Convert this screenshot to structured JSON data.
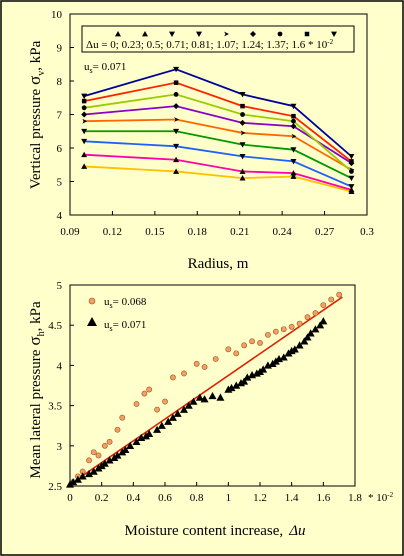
{
  "figure": {
    "background": "#ffffcc",
    "border": "#000000"
  },
  "chart_data": [
    {
      "type": "line",
      "title": "",
      "xlabel": "Radius, m",
      "ylabel_main": "Vertical pressure",
      "ylabel_symbol": "σ",
      "ylabel_sub": "v",
      "ylabel_unit": ", kPa",
      "xlim": [
        0.09,
        0.3
      ],
      "ylim": [
        4,
        10
      ],
      "xticks": [
        "0.09",
        "0.12",
        "0.15",
        "0.18",
        "0.21",
        "0.24",
        "0.27",
        "0.3"
      ],
      "yticks": [
        "4",
        "5",
        "6",
        "7",
        "8",
        "9",
        "10"
      ],
      "grid": false,
      "legend": {
        "placement": "top",
        "text": "Δu =  0;  0.23;  0.5;  0.71;  0.81;  1.07;  1.24;  1.37;  1.6 * 10",
        "superscript": "-2"
      },
      "annotation": {
        "main": "u",
        "sub": "s",
        "value": "= 0.071"
      },
      "x": [
        0.1,
        0.165,
        0.212,
        0.248,
        0.289
      ],
      "series": [
        {
          "delta_u": 0,
          "color": "#ffc000",
          "marker": "triangle-up",
          "values": [
            5.45,
            5.3,
            5.1,
            5.15,
            4.7
          ]
        },
        {
          "delta_u": 0.23,
          "color": "#ff00aa",
          "marker": "triangle-up",
          "values": [
            5.8,
            5.65,
            5.3,
            5.25,
            4.75
          ]
        },
        {
          "delta_u": 0.5,
          "color": "#2060ff",
          "marker": "triangle-down",
          "values": [
            6.2,
            6.05,
            5.75,
            5.6,
            4.85
          ]
        },
        {
          "delta_u": 0.71,
          "color": "#009900",
          "marker": "triangle-down",
          "values": [
            6.5,
            6.5,
            6.1,
            5.95,
            5.1
          ]
        },
        {
          "delta_u": 0.81,
          "color": "#ff6600",
          "marker": "arrow",
          "values": [
            6.8,
            6.85,
            6.45,
            6.35,
            5.35
          ]
        },
        {
          "delta_u": 1.07,
          "color": "#8800cc",
          "marker": "diamond",
          "values": [
            7.0,
            7.25,
            6.75,
            6.65,
            5.55
          ]
        },
        {
          "delta_u": 1.24,
          "color": "#99cc00",
          "marker": "circle",
          "values": [
            7.2,
            7.6,
            7.0,
            6.8,
            5.3
          ]
        },
        {
          "delta_u": 1.37,
          "color": "#ff2200",
          "marker": "square",
          "values": [
            7.4,
            7.95,
            7.25,
            6.95,
            5.6
          ]
        },
        {
          "delta_u": 1.6,
          "color": "#000099",
          "marker": "triangle-down",
          "values": [
            7.55,
            8.35,
            7.6,
            7.25,
            5.75
          ]
        }
      ]
    },
    {
      "type": "scatter",
      "title": "",
      "xlabel": "Moisture content increase,",
      "xlabel_symbol": "Δu",
      "ylabel_main": "Mean lateral pressure",
      "ylabel_symbol": "σ",
      "ylabel_sub": "h",
      "ylabel_unit": ", kPa",
      "xlim": [
        0,
        1.8
      ],
      "ylim": [
        2.5,
        5
      ],
      "xticks": [
        "0",
        "0.2",
        "0.4",
        "0.6",
        "0.8",
        "1",
        "1.2",
        "1.4",
        "1.6",
        "1.8"
      ],
      "x_multiplier_label": "* 10",
      "x_multiplier_sup": "-2",
      "yticks": [
        "2.5",
        "3",
        "3.5",
        "4",
        "4.5",
        "5"
      ],
      "grid": false,
      "legend": {
        "placement": "top-left"
      },
      "trendline": {
        "color": "#dd2200",
        "x": [
          0,
          1.72
        ],
        "y": [
          2.52,
          4.85
        ]
      },
      "series": [
        {
          "name_main": "u",
          "name_sub": "s",
          "name_value": "= 0.068",
          "marker": "circle",
          "color": "#f0a060",
          "x": [
            0.02,
            0.05,
            0.08,
            0.12,
            0.15,
            0.18,
            0.22,
            0.25,
            0.3,
            0.33,
            0.42,
            0.47,
            0.5,
            0.55,
            0.6,
            0.65,
            0.72,
            0.8,
            0.85,
            0.92,
            1.0,
            1.05,
            1.1,
            1.15,
            1.2,
            1.25,
            1.3,
            1.35,
            1.4,
            1.45,
            1.5,
            1.55,
            1.6,
            1.65,
            1.7
          ],
          "y": [
            2.55,
            2.62,
            2.68,
            2.82,
            2.92,
            2.88,
            3.0,
            3.05,
            3.2,
            3.35,
            3.52,
            3.65,
            3.7,
            3.45,
            3.55,
            3.85,
            3.9,
            4.02,
            3.98,
            4.08,
            4.2,
            4.15,
            4.25,
            4.3,
            4.28,
            4.38,
            4.42,
            4.45,
            4.48,
            4.52,
            4.6,
            4.65,
            4.75,
            4.82,
            4.88
          ]
        },
        {
          "name_main": "u",
          "name_sub": "s",
          "name_value": "= 0.071",
          "marker": "triangle-up",
          "color": "#000000",
          "x": [
            0.0,
            0.02,
            0.05,
            0.08,
            0.12,
            0.15,
            0.18,
            0.2,
            0.22,
            0.25,
            0.28,
            0.3,
            0.33,
            0.35,
            0.38,
            0.42,
            0.45,
            0.48,
            0.5,
            0.55,
            0.58,
            0.62,
            0.65,
            0.68,
            0.72,
            0.75,
            0.78,
            0.82,
            0.85,
            0.9,
            0.95,
            1.0,
            1.02,
            1.05,
            1.08,
            1.1,
            1.12,
            1.15,
            1.18,
            1.2,
            1.22,
            1.25,
            1.28,
            1.3,
            1.32,
            1.35,
            1.38,
            1.4,
            1.42,
            1.45,
            1.48,
            1.5,
            1.52,
            1.55,
            1.58,
            1.6
          ],
          "y": [
            2.52,
            2.55,
            2.58,
            2.62,
            2.65,
            2.68,
            2.72,
            2.75,
            2.78,
            2.82,
            2.85,
            2.88,
            2.92,
            2.95,
            3.0,
            3.05,
            3.1,
            3.12,
            3.15,
            3.2,
            3.25,
            3.3,
            3.35,
            3.4,
            3.45,
            3.5,
            3.55,
            3.6,
            3.58,
            3.62,
            3.6,
            3.7,
            3.72,
            3.75,
            3.78,
            3.8,
            3.85,
            3.88,
            3.9,
            3.92,
            3.95,
            4.0,
            4.02,
            4.05,
            4.08,
            4.1,
            4.15,
            4.18,
            4.2,
            4.25,
            4.3,
            4.35,
            4.4,
            4.45,
            4.5,
            4.55
          ]
        }
      ]
    }
  ]
}
